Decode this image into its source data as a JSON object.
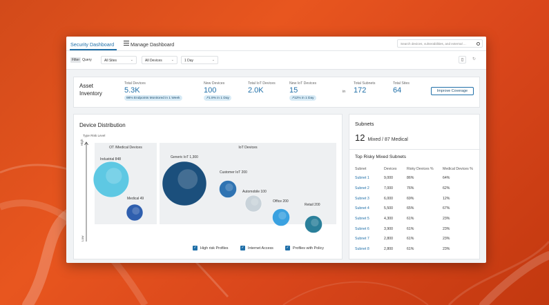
{
  "header": {
    "active_tab": "Security Dashboard",
    "manage_tab": "Manage Dashboard",
    "search_placeholder": "Search devices, vulnerabilities, and external ..."
  },
  "filters": {
    "filter_label": "Filter",
    "query_label": "Query",
    "sites": "All Sites",
    "devices": "All Devices",
    "time_range": "1 Day"
  },
  "inventory": {
    "title": "Asset Inventory",
    "total_devices": {
      "label": "Total Devices",
      "value": "5.3K",
      "badge": "98% Endpoints Monitored in 1 Week"
    },
    "new_devices": {
      "label": "New Devices",
      "value": "100",
      "badge": "↗1.9% in 1 Day"
    },
    "total_iot": {
      "label": "Total IoT Devices",
      "value": "2.0K"
    },
    "new_iot": {
      "label": "New IoT Devices",
      "value": "15",
      "badge": "↗12% in 1 Day"
    },
    "in_label": "in",
    "total_subnets": {
      "label": "Total Subnets",
      "value": "172"
    },
    "total_sites": {
      "label": "Total Sites",
      "value": "64"
    },
    "improve_button": "Improve Coverage"
  },
  "distribution": {
    "title": "Device Distribution",
    "y_label": "Type Risk Level",
    "y_high": "High",
    "y_low": "Low",
    "groups": [
      {
        "label": "OT /Medical Devices"
      },
      {
        "label": "IoT Devices"
      }
    ],
    "bubbles": [
      {
        "label": "Industrial 848",
        "value": 848,
        "group": "OT",
        "color": "#5ec8e3"
      },
      {
        "label": "Medical 49",
        "value": 49,
        "group": "OT",
        "color": "#2f5fae"
      },
      {
        "label": "Generic IoT 1,300",
        "value": 1300,
        "group": "IoT",
        "color": "#1b4f7c"
      },
      {
        "label": "Customer IoT 200",
        "value": 200,
        "group": "IoT",
        "color": "#2f73b2"
      },
      {
        "label": "Automobile 100",
        "value": 100,
        "group": "IoT",
        "color": "#c9d3da"
      },
      {
        "label": "Office 200",
        "value": 200,
        "group": "IoT",
        "color": "#3aa1e0"
      },
      {
        "label": "Retail 200",
        "value": 200,
        "group": "IoT",
        "color": "#2a7f9a"
      }
    ],
    "legend": [
      {
        "label": "High risk Profiles"
      },
      {
        "label": "Internet Access"
      },
      {
        "label": "Profiles with Policy"
      }
    ]
  },
  "subnets": {
    "title": "Subnets",
    "count": "12",
    "breakdown": "Mixed / 87 Medical",
    "table_title": "Top Risky Mixed Subnets",
    "columns": [
      "Subnet",
      "Devices",
      "Risky Devices %",
      "Medical Devices %"
    ],
    "rows": [
      [
        "Subnet 1",
        "9,000",
        "86%",
        "64%"
      ],
      [
        "Subnet 2",
        "7,000",
        "76%",
        "62%"
      ],
      [
        "Subnet 3",
        "6,000",
        "69%",
        "12%"
      ],
      [
        "Subnet 4",
        "5,500",
        "65%",
        "67%"
      ],
      [
        "Subnet 5",
        "4,300",
        "61%",
        "23%"
      ],
      [
        "Subnet 6",
        "3,900",
        "61%",
        "23%"
      ],
      [
        "Subnet 7",
        "2,800",
        "61%",
        "23%"
      ],
      [
        "Subnet 8",
        "2,800",
        "61%",
        "23%"
      ]
    ]
  },
  "colors": {
    "accent": "#1f6fa8",
    "background": "#e8561f"
  }
}
